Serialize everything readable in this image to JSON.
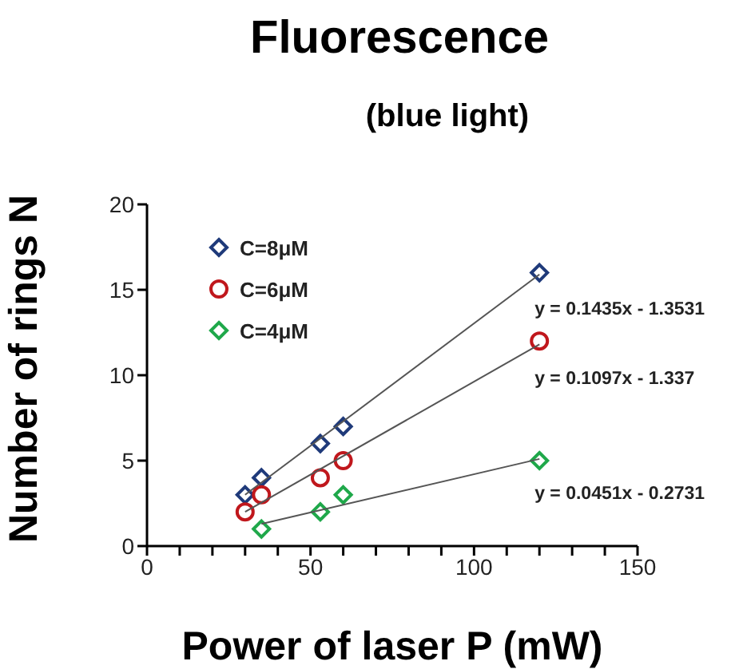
{
  "chart_data": {
    "type": "scatter",
    "title": "Fluorescence",
    "subtitle": "(blue light)",
    "xlabel": "Power of laser P (mW)",
    "ylabel": "Number of rings N",
    "series": [
      {
        "name": "C=8μM",
        "color": "#1f3a7a",
        "marker": "diamond",
        "x": [
          30,
          35,
          53,
          60,
          120
        ],
        "values": [
          3,
          4,
          6,
          7,
          16
        ]
      },
      {
        "name": "C=6μM",
        "color": "#c0171c",
        "marker": "circle",
        "x": [
          30,
          35,
          53,
          60,
          120
        ],
        "values": [
          2,
          3,
          4,
          5,
          12
        ]
      },
      {
        "name": "C=4μM",
        "color": "#1fa84a",
        "marker": "diamond",
        "x": [
          35,
          53,
          60,
          120
        ],
        "values": [
          1,
          2,
          3,
          5
        ]
      },
      {
        "type": "line",
        "color": "#555555",
        "marker": "none",
        "x": [
          30,
          120
        ],
        "values": [
          3,
          15.9
        ]
      },
      {
        "type": "line",
        "color": "#555555",
        "marker": "none",
        "x": [
          30,
          120
        ],
        "values": [
          2,
          11.8
        ]
      },
      {
        "type": "line",
        "color": "#555555",
        "marker": "none",
        "x": [
          35,
          120
        ],
        "values": [
          1.3,
          5.1
        ]
      }
    ],
    "annotations": [
      "y = 0.1435x - 1.3531",
      "y = 0.1097x - 1.337",
      "y = 0.0451x - 0.2731"
    ],
    "xlim": [
      0,
      150
    ],
    "xticks": [
      0,
      {
        "value": 10,
        "label": null
      },
      {
        "value": 20,
        "label": null
      },
      {
        "value": 30,
        "label": null
      },
      {
        "value": 40,
        "label": null
      },
      50,
      {
        "value": 60,
        "label": null
      },
      {
        "value": 70,
        "label": null
      },
      {
        "value": 80,
        "label": null
      },
      {
        "value": 90,
        "label": null
      },
      100,
      {
        "value": 110,
        "label": null
      },
      {
        "value": 120,
        "label": null
      },
      {
        "value": 130,
        "label": null
      },
      {
        "value": 140,
        "label": null
      },
      150
    ],
    "ylim": [
      0,
      20
    ],
    "yticks": [
      0,
      5,
      10,
      15,
      20
    ],
    "grid": false,
    "legend": "top left"
  }
}
